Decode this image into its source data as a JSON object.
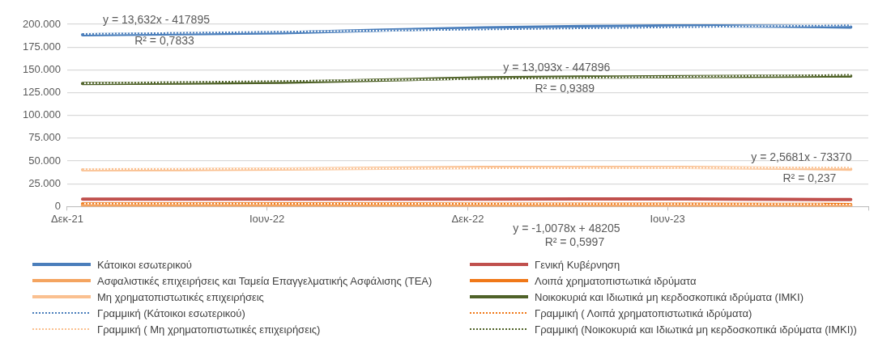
{
  "chart_data": {
    "type": "line",
    "x": [
      "2021-12-15",
      "2022-03-15",
      "2022-06-15",
      "2022-09-15",
      "2022-12-15",
      "2023-03-15",
      "2023-06-15",
      "2023-09-15",
      "2023-11-15"
    ],
    "xlim": [
      "2021-12-01",
      "2023-12-01"
    ],
    "xticks": [
      {
        "value": "2021-12-01",
        "label": "Δεκ-21"
      },
      {
        "value": "2022-06-01",
        "label": "Ιουν-22"
      },
      {
        "value": "2022-12-01",
        "label": "Δεκ-22"
      },
      {
        "value": "2023-06-01",
        "label": "Ιουν-23"
      },
      {
        "value": "2023-12-01",
        "label": null
      }
    ],
    "ylim": [
      0,
      200000
    ],
    "yticks": [
      {
        "value": 0,
        "label": "0"
      },
      {
        "value": 25000,
        "label": "25.000"
      },
      {
        "value": 50000,
        "label": "50.000"
      },
      {
        "value": 75000,
        "label": "75.000"
      },
      {
        "value": 100000,
        "label": "100.000"
      },
      {
        "value": 125000,
        "label": "125.000"
      },
      {
        "value": 150000,
        "label": "150.000"
      },
      {
        "value": 175000,
        "label": "175.000"
      },
      {
        "value": 200000,
        "label": "200.000"
      }
    ],
    "grid": "y",
    "legend": "bottom",
    "line_style": "solid",
    "marker": "none",
    "series": [
      {
        "name": "Κάτοικοι εσωτερικού",
        "color": "#4a7ebb",
        "values": [
          188500,
          189500,
          190700,
          193500,
          196000,
          197500,
          198400,
          197800,
          197000
        ]
      },
      {
        "name": "Γενική Κυβέρνηση",
        "color": "#c0504d",
        "values": [
          8200,
          8200,
          8200,
          8100,
          8100,
          8300,
          8400,
          8000,
          7600
        ]
      },
      {
        "name": "Ασφαλιστικές επιχειρήσεις και Ταμεία Επαγγελματικής Ασφάλισης (ΤΕΑ)",
        "color": "#f4a460",
        "values": [
          1000,
          1000,
          1000,
          1000,
          1000,
          1000,
          1000,
          1000,
          1000
        ]
      },
      {
        "name": "Λοιπά χρηματοπιστωτικά ιδρύματα",
        "color": "#f07818",
        "values": [
          3000,
          3000,
          3100,
          2900,
          2600,
          2600,
          2600,
          2400,
          2200
        ]
      },
      {
        "name": "Μη χρηματοπιστωτικές επιχειρήσεις",
        "color": "#fac090",
        "values": [
          40300,
          40600,
          41100,
          42000,
          42900,
          43000,
          42900,
          42000,
          40900
        ]
      },
      {
        "name": "Νοικοκυριά και Ιδιωτικά μη κερδοσκοπικά ιδρύματα (ΙΜΚΙ)",
        "color": "#4f6228",
        "values": [
          134900,
          135500,
          136300,
          138700,
          141300,
          142000,
          142500,
          143000,
          143200
        ]
      },
      {
        "name": "Γραμμική (Κάτοικοι εσωτερικού)",
        "type": "line",
        "line_style": "dotted",
        "color": "#4a7ebb",
        "x": [
          "2021-12-15",
          "2023-11-15"
        ],
        "values": [
          189300,
          198900
        ]
      },
      {
        "name": "Γραμμική ( Λοιπά χρηματοπιστωτικά ιδρύματα)",
        "type": "line",
        "line_style": "dotted",
        "color": "#f07818",
        "x": [
          "2021-12-15",
          "2023-11-15"
        ],
        "values": [
          3300,
          2600
        ]
      },
      {
        "name": "Γραμμική ( Μη χρηματοπιστωτικές επιχειρήσεις)",
        "type": "line",
        "line_style": "dotted",
        "color": "#fac090",
        "x": [
          "2021-12-15",
          "2023-11-15"
        ],
        "values": [
          41000,
          42800
        ]
      },
      {
        "name": "Γραμμική (Νοικοκυριά και Ιδιωτικά μη κερδοσκοπικά ιδρύματα (ΙΜΚΙ))",
        "type": "line",
        "line_style": "dotted",
        "color": "#4f6228",
        "x": [
          "2021-12-15",
          "2023-11-15"
        ],
        "values": [
          135300,
          144500
        ]
      }
    ],
    "annotations": [
      "y = 13,632x - 417895\nR² = 0,7833",
      {
        "text": "y = 13,093x - 447896\nR² = 0,9389",
        "x": "2023-02-20",
        "y": 140000
      },
      {
        "text": "y = 2,5681x - 73370\nR² = 0,237",
        "x": "2023-10-01",
        "y": 42000
      },
      {
        "text": "y = -1,0078x + 48205\nR² = 0,5997",
        "x": "2023-03-01",
        "y": 0
      }
    ]
  }
}
